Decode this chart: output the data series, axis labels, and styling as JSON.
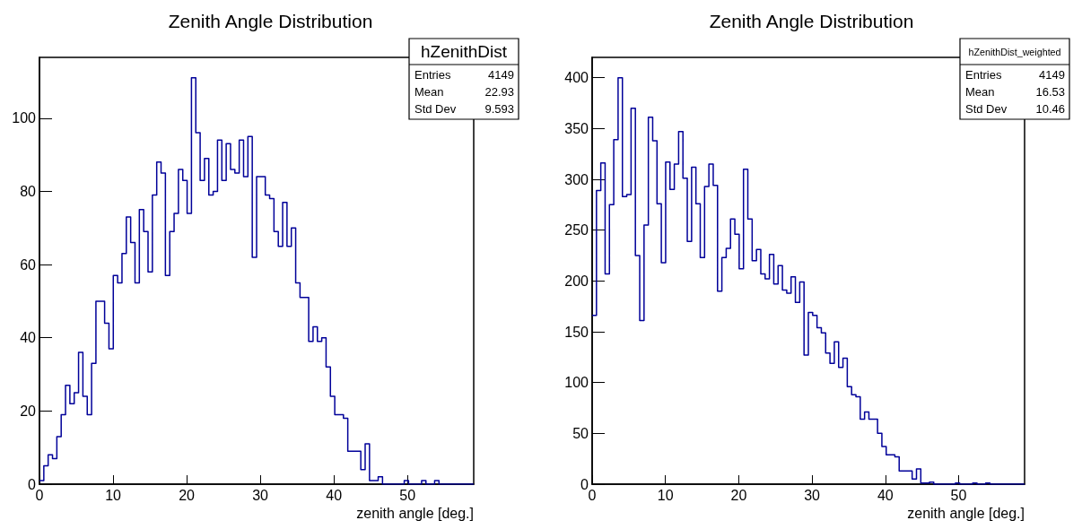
{
  "chart_data": [
    {
      "type": "histogram",
      "title": "Zenith Angle Distribution",
      "xlabel": "zenith angle [deg.]",
      "color": "#000099",
      "grid": false,
      "xlim": [
        0,
        59
      ],
      "ylim": [
        0,
        116.6
      ],
      "xticks": [
        0,
        10,
        20,
        30,
        40,
        50
      ],
      "yticks": [
        0,
        20,
        40,
        60,
        80,
        100
      ],
      "annotations": [
        "hZenithDist",
        "Entries",
        "4149",
        "Mean",
        "22.93",
        "Std Dev",
        "9.593"
      ],
      "bins": [
        0,
        0.59,
        1.18,
        1.77,
        2.36,
        2.95,
        3.54,
        4.13,
        4.72,
        5.31,
        5.9,
        6.49,
        7.08,
        7.67,
        8.26,
        8.85,
        9.44,
        10.03,
        10.62,
        11.21,
        11.8,
        12.39,
        12.98,
        13.57,
        14.16,
        14.75,
        15.34,
        15.93,
        16.52,
        17.11,
        17.7,
        18.29,
        18.88,
        19.47,
        20.06,
        20.65,
        21.24,
        21.83,
        22.42,
        23.01,
        23.6,
        24.19,
        24.78,
        25.37,
        25.96,
        26.55,
        27.14,
        27.73,
        28.32,
        28.91,
        29.5,
        30.09,
        30.68,
        31.27,
        31.86,
        32.45,
        33.04,
        33.63,
        34.22,
        34.81,
        35.4,
        35.99,
        36.58,
        37.17,
        37.76,
        38.35,
        38.94,
        39.53,
        40.12,
        40.71,
        41.3,
        41.89,
        42.48,
        43.07,
        43.66,
        44.25,
        44.84,
        45.43,
        46.02,
        46.61,
        47.2,
        47.79,
        48.38,
        48.97,
        49.56,
        50.15,
        50.74,
        51.33,
        51.92,
        52.51,
        53.1,
        53.69,
        54.28,
        54.87,
        55.46,
        56.05,
        56.64,
        57.23,
        57.82,
        58.41,
        59
      ],
      "values": [
        1,
        5,
        8,
        7,
        13,
        19,
        27,
        22,
        25,
        36,
        24,
        19,
        33,
        50,
        50,
        44,
        37,
        57,
        55,
        63,
        73,
        66,
        55,
        75,
        69,
        58,
        79,
        88,
        85,
        57,
        69,
        74,
        86,
        83,
        74,
        111,
        96,
        83,
        89,
        79,
        80,
        94,
        83,
        93,
        86,
        85,
        94,
        84,
        95,
        62,
        84,
        84,
        79,
        78,
        69,
        65,
        77,
        65,
        70,
        55,
        51,
        51,
        39,
        43,
        39,
        40,
        32,
        24,
        19,
        19,
        18,
        9,
        9,
        9,
        4,
        11,
        1,
        1,
        2,
        0,
        0,
        0,
        0,
        0,
        1,
        0,
        0,
        0,
        1,
        0,
        0,
        1,
        0,
        0,
        0,
        0,
        0,
        0,
        0,
        0
      ]
    },
    {
      "type": "histogram",
      "title": "Zenith Angle Distribution",
      "xlabel": "zenith angle [deg.]",
      "color": "#000099",
      "grid": false,
      "xlim": [
        0,
        59
      ],
      "ylim": [
        0,
        420
      ],
      "xticks": [
        0,
        10,
        20,
        30,
        40,
        50
      ],
      "yticks": [
        0,
        50,
        100,
        150,
        200,
        250,
        300,
        350,
        400
      ],
      "annotations": [
        "hZenithDist_weighted",
        "Entries",
        "4149",
        "Mean",
        "16.53",
        "Std Dev",
        "10.46"
      ],
      "bins": [
        0,
        0.59,
        1.18,
        1.77,
        2.36,
        2.95,
        3.54,
        4.13,
        4.72,
        5.31,
        5.9,
        6.49,
        7.08,
        7.67,
        8.26,
        8.85,
        9.44,
        10.03,
        10.62,
        11.21,
        11.8,
        12.39,
        12.98,
        13.57,
        14.16,
        14.75,
        15.34,
        15.93,
        16.52,
        17.11,
        17.7,
        18.29,
        18.88,
        19.47,
        20.06,
        20.65,
        21.24,
        21.83,
        22.42,
        23.01,
        23.6,
        24.19,
        24.78,
        25.37,
        25.96,
        26.55,
        27.14,
        27.73,
        28.32,
        28.91,
        29.5,
        30.09,
        30.68,
        31.27,
        31.86,
        32.45,
        33.04,
        33.63,
        34.22,
        34.81,
        35.4,
        35.99,
        36.58,
        37.17,
        37.76,
        38.35,
        38.94,
        39.53,
        40.12,
        40.71,
        41.3,
        41.89,
        42.48,
        43.07,
        43.66,
        44.25,
        44.84,
        45.43,
        46.02,
        46.61,
        47.2,
        47.79,
        48.38,
        48.97,
        49.56,
        50.15,
        50.74,
        51.33,
        51.92,
        52.51,
        53.1,
        53.69,
        54.28,
        54.87,
        55.46,
        56.05,
        56.64,
        57.23,
        57.82,
        58.41,
        59
      ],
      "values": [
        166,
        289,
        316,
        207,
        275,
        339,
        400,
        283,
        285,
        370,
        225,
        161,
        255,
        361,
        338,
        276,
        218,
        317,
        290,
        315,
        347,
        301,
        239,
        312,
        276,
        223,
        293,
        315,
        294,
        190,
        223,
        232,
        261,
        246,
        212,
        310,
        261,
        220,
        231,
        207,
        202,
        226,
        197,
        215,
        191,
        188,
        204,
        179,
        199,
        127,
        169,
        166,
        154,
        149,
        129,
        119,
        140,
        115,
        124,
        96,
        88,
        86,
        64,
        71,
        64,
        64,
        50,
        37,
        29,
        29,
        27,
        13,
        13,
        13,
        5,
        15,
        1,
        1,
        2,
        0,
        0,
        0,
        0,
        0,
        1,
        0,
        0,
        0,
        1,
        0,
        0,
        1,
        0,
        0,
        0,
        0,
        0,
        0,
        0,
        0
      ]
    }
  ]
}
